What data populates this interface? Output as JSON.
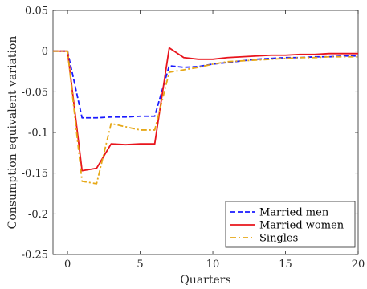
{
  "chart_data": {
    "type": "line",
    "title": "",
    "xlabel": "Quarters",
    "ylabel": "Consumption equivalent variation",
    "xlim": [
      -1,
      20
    ],
    "ylim": [
      -0.25,
      0.05
    ],
    "xticks": [
      0,
      5,
      10,
      15,
      20
    ],
    "xtick_labels": [
      "0",
      "5",
      "10",
      "15",
      "20"
    ],
    "yticks": [
      0.05,
      0,
      -0.05,
      -0.1,
      -0.15,
      -0.2,
      -0.25
    ],
    "ytick_labels": [
      "0.05",
      "0",
      "-0.05",
      "-0.1",
      "-0.15",
      "-0.2",
      "-0.25"
    ],
    "grid": false,
    "legend_position": "bottom-right",
    "x": [
      -1,
      0,
      1,
      2,
      3,
      4,
      5,
      6,
      7,
      8,
      9,
      10,
      11,
      12,
      13,
      14,
      15,
      16,
      17,
      18,
      19,
      20
    ],
    "series": [
      {
        "name": "Married men",
        "color": "#1a1aff",
        "dash": "dashed",
        "values": [
          0,
          0,
          -0.082,
          -0.082,
          -0.081,
          -0.081,
          -0.08,
          -0.08,
          -0.018,
          -0.02,
          -0.019,
          -0.016,
          -0.014,
          -0.012,
          -0.01,
          -0.009,
          -0.008,
          -0.008,
          -0.007,
          -0.007,
          -0.006,
          -0.006
        ]
      },
      {
        "name": "Married women",
        "color": "#e8141c",
        "dash": "solid",
        "values": [
          0,
          0,
          -0.147,
          -0.144,
          -0.114,
          -0.115,
          -0.114,
          -0.114,
          0.004,
          -0.008,
          -0.01,
          -0.01,
          -0.008,
          -0.007,
          -0.006,
          -0.005,
          -0.005,
          -0.004,
          -0.004,
          -0.003,
          -0.003,
          -0.003
        ]
      },
      {
        "name": "Singles",
        "color": "#e6a817",
        "dash": "dashdot",
        "values": [
          0,
          0,
          -0.16,
          -0.163,
          -0.089,
          -0.093,
          -0.097,
          -0.097,
          -0.026,
          -0.023,
          -0.02,
          -0.016,
          -0.013,
          -0.012,
          -0.011,
          -0.01,
          -0.009,
          -0.008,
          -0.008,
          -0.007,
          -0.007,
          -0.007
        ]
      }
    ]
  }
}
